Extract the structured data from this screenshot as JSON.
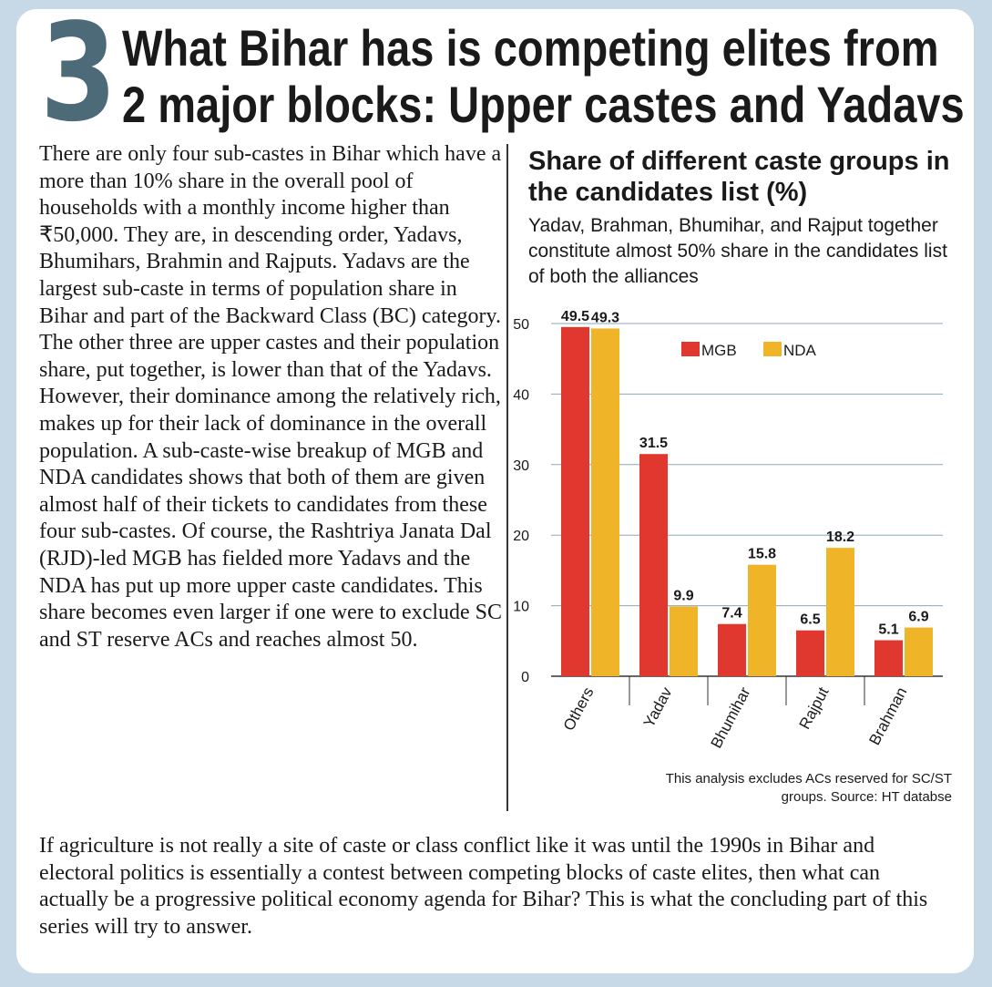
{
  "section_number": "3",
  "headline_line1": "What Bihar has is competing elites from",
  "headline_line2": "2 major blocks: Upper castes and Yadavs",
  "body_text": "There are only four sub-castes in Bihar which have a more than 10% share in the overall pool of households with a monthly income higher than ₹50,000. They are, in descending order, Yadavs, Bhumihars, Brahmin and Rajputs. Yadavs are the largest sub-caste in terms of population share in Bihar and part of the Backward Class (BC) category. The other three are upper castes and their population share, put together, is lower than that of the Yadavs. However, their dominance among the relatively rich, makes up for their lack of dominance in the overall population. A sub-caste-wise breakup of MGB and NDA candidates shows that both of them are given almost half of their tickets to candidates from these four sub-castes. Of course, the Rashtriya Janata Dal (RJD)-led MGB has fielded more Yadavs and the NDA has put up more upper caste candidates. This share becomes even larger if one were to exclude SC and ST reserve ACs and reaches almost 50.",
  "closing_text": "If agriculture is not really a site of caste or class conflict like it was until the 1990s in Bihar and electoral politics is essentially a contest between competing blocks of caste elites, then what can actually be a progressive political economy agenda for Bihar? This is what the concluding part of this series will try to answer.",
  "colors": {
    "mgb": "#e0382e",
    "nda": "#f0b429",
    "number": "#4c6a78",
    "grid": "#8aa9bd",
    "background": "#c7d8e6"
  },
  "chart_data": {
    "type": "bar",
    "title": "Share of different caste groups in the candidates list (%)",
    "subtitle": "Yadav, Brahman, Bhumihar, and Rajput together constitute almost 50% share in the candidates list of both the alliances",
    "categories": [
      "Others",
      "Yadav",
      "Bhumihar",
      "Rajput",
      "Brahman"
    ],
    "series": [
      {
        "name": "MGB",
        "values": [
          49.5,
          31.5,
          7.4,
          6.5,
          5.1
        ]
      },
      {
        "name": "NDA",
        "values": [
          49.3,
          9.9,
          15.8,
          18.2,
          6.9
        ]
      }
    ],
    "ylim": [
      0,
      50
    ],
    "yticks": [
      0,
      10,
      20,
      30,
      40,
      50
    ],
    "xlabel": "",
    "ylabel": "",
    "grid": true,
    "legend": "top-center",
    "source": "This analysis excludes ACs reserved for SC/ST groups. Source: HT databse"
  }
}
